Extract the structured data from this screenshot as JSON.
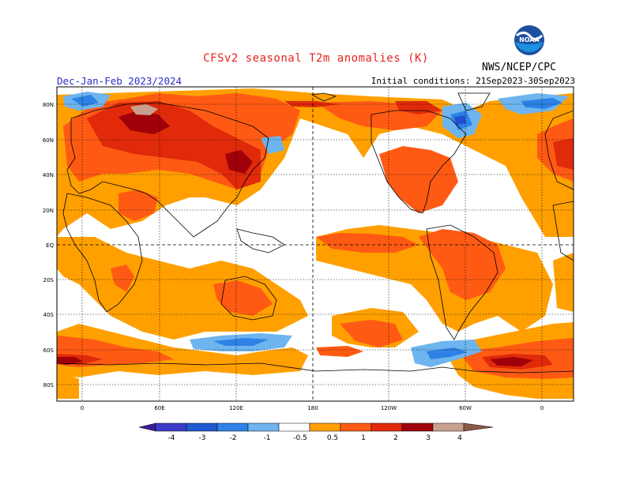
{
  "header": {
    "title": "CFSv2 seasonal T2m anomalies (K)",
    "period": "Dec-Jan-Feb 2023/2024",
    "initial_conditions": "Initial conditions: 21Sep2023-30Sep2023",
    "agency": "NWS/NCEP/CPC",
    "logo_text": "NOAA"
  },
  "map": {
    "lat_labels": [
      "80N",
      "60N",
      "40N",
      "20N",
      "EQ",
      "20S",
      "40S",
      "60S",
      "80S"
    ],
    "lon_labels": [
      "0",
      "60E",
      "120E",
      "180",
      "120W",
      "60W",
      "0"
    ],
    "colors": {
      "neg_lt_4": "#3c1e96",
      "neg_4_3": "#3232c8",
      "neg_3_2": "#2050d0",
      "neg_2_1": "#2e82e6",
      "neg_1_05": "#6eb4ee",
      "neutral": "#ffffff",
      "pos_05_1": "#ffa000",
      "pos_1_2": "#ff5a14",
      "pos_2_3": "#e02a0a",
      "pos_3_4": "#a0000a",
      "pos_4_5": "#c8a090",
      "pos_gt_5": "#8c5a46"
    }
  },
  "colorbar": {
    "tick_labels": [
      "-4",
      "-3",
      "-2",
      "-1",
      "-0.5",
      "0.5",
      "1",
      "2",
      "3",
      "4"
    ],
    "colors": [
      "#3c1e96",
      "#3c3cc8",
      "#2058d0",
      "#2e82e6",
      "#6eb4ee",
      "#ffffff",
      "#ffa000",
      "#ff5a14",
      "#e02a0a",
      "#a0000a",
      "#c8a090",
      "#8c5a46"
    ]
  }
}
